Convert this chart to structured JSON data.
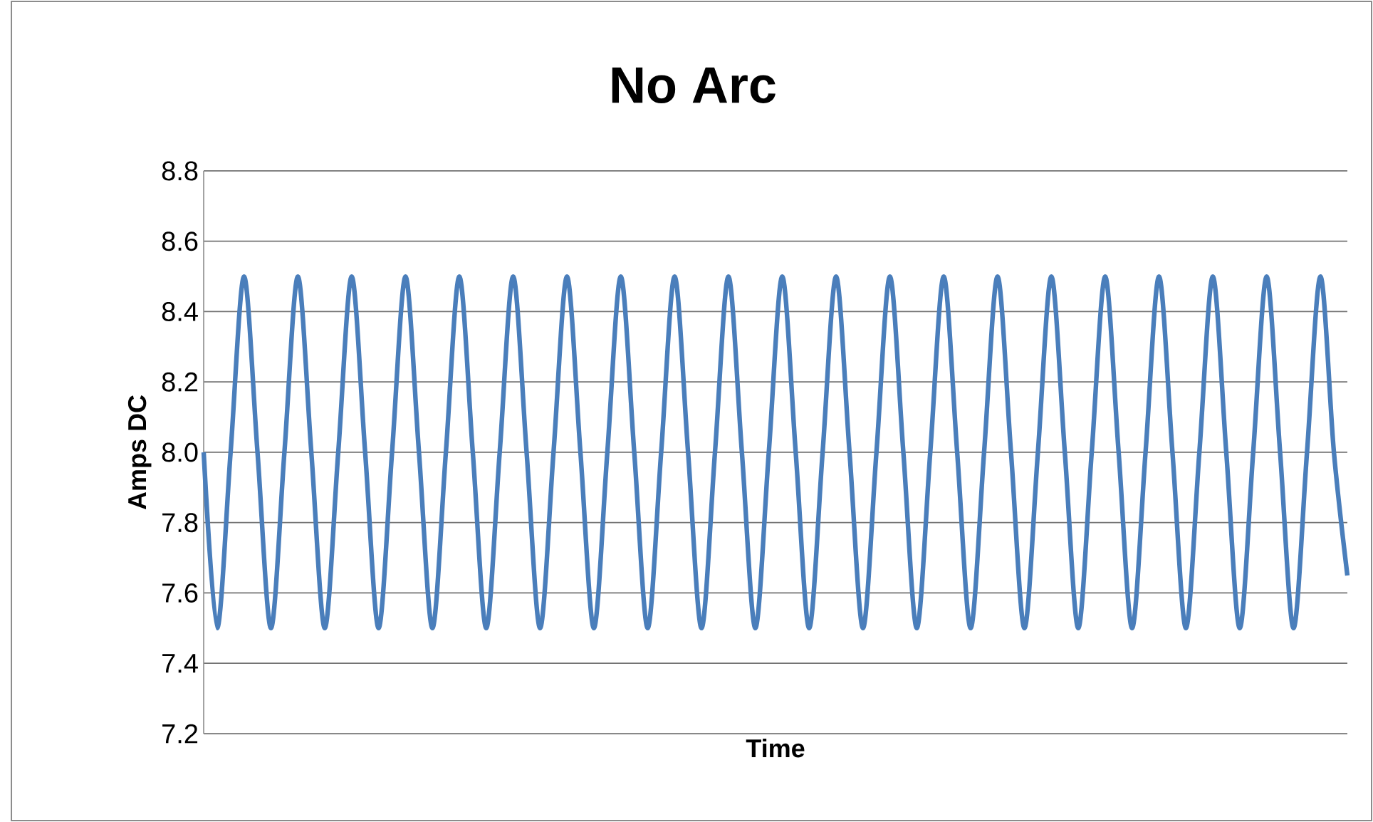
{
  "chart_data": {
    "type": "line",
    "title": "No Arc",
    "xlabel": "Time",
    "ylabel": "Amps DC",
    "categories": [
      null,
      null,
      null,
      null,
      null,
      null,
      null,
      null,
      null,
      null,
      null,
      null,
      null,
      null,
      null,
      null,
      null,
      null,
      null,
      null,
      null,
      null,
      null,
      null,
      null,
      null,
      null,
      null,
      null,
      null,
      null,
      null,
      null,
      null,
      null,
      null,
      null,
      null,
      null,
      null,
      null,
      null,
      null,
      null,
      null,
      null,
      null,
      null,
      null,
      null,
      null,
      null,
      null,
      null,
      null,
      null,
      null,
      null,
      null,
      null,
      null,
      null,
      null,
      null,
      null,
      null,
      null,
      null,
      null,
      null,
      null,
      null,
      null,
      null,
      null,
      null,
      null,
      null,
      null,
      null,
      null,
      null,
      null,
      null,
      null,
      null
    ],
    "series": [
      {
        "color": "#4a7ebb",
        "values": [
          8.0,
          7.5,
          8.0,
          8.5,
          8.0,
          7.5,
          8.0,
          8.5,
          8.0,
          7.5,
          8.0,
          8.5,
          8.0,
          7.5,
          8.0,
          8.5,
          8.0,
          7.5,
          8.0,
          8.5,
          8.0,
          7.5,
          8.0,
          8.5,
          8.0,
          7.5,
          8.0,
          8.5,
          8.0,
          7.5,
          8.0,
          8.5,
          8.0,
          7.5,
          8.0,
          8.5,
          8.0,
          7.5,
          8.0,
          8.5,
          8.0,
          7.5,
          8.0,
          8.5,
          8.0,
          7.5,
          8.0,
          8.5,
          8.0,
          7.5,
          8.0,
          8.5,
          8.0,
          7.5,
          8.0,
          8.5,
          8.0,
          7.5,
          8.0,
          8.5,
          8.0,
          7.5,
          8.0,
          8.5,
          8.0,
          7.5,
          8.0,
          8.5,
          8.0,
          7.5,
          8.0,
          8.5,
          8.0,
          7.5,
          8.0,
          8.5,
          8.0,
          7.5,
          8.0,
          8.5,
          8.0,
          7.5,
          8.0,
          8.5,
          8.0,
          7.65
        ]
      }
    ],
    "ylim": [
      7.2,
      8.8
    ],
    "yticks": [
      7.2,
      7.4,
      7.6,
      7.8,
      {
        "value": 8.0,
        "label": "8.0"
      },
      8.2,
      8.4,
      8.6,
      8.8
    ],
    "grid": "y",
    "marker": "none",
    "line_style": "solid"
  }
}
